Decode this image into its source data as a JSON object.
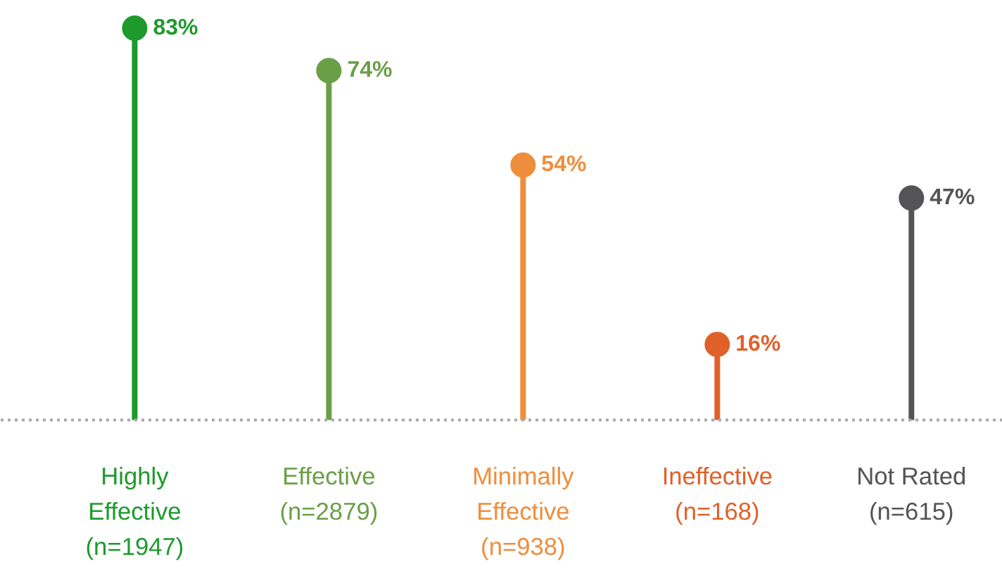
{
  "chart_data": {
    "type": "lollipop",
    "categories": [
      "Highly\nEffective\n(n=1947)",
      "Effective\n(n=2879)",
      "Minimally\nEffective\n(n=938)",
      "Ineffective\n(n=168)",
      "Not Rated\n(n=615)"
    ],
    "values": [
      83,
      74,
      54,
      16,
      47
    ],
    "value_labels": [
      "83%",
      "74%",
      "54%",
      "16%",
      "47%"
    ],
    "colors": [
      "#1e9a2c",
      "#6a9f48",
      "#ee8e3c",
      "#e0602a",
      "#545456"
    ],
    "tick_labels": false,
    "grid": false,
    "marker": "circle"
  }
}
